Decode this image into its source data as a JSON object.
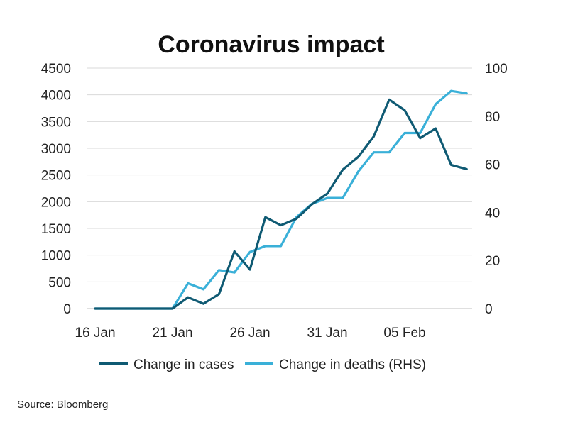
{
  "chart_data": {
    "type": "line",
    "title": "Coronavirus impact",
    "x_tick_labels": [
      "16 Jan",
      "21 Jan",
      "26 Jan",
      "31 Jan",
      "05 Feb"
    ],
    "x_tick_index": [
      0,
      5,
      10,
      15,
      20
    ],
    "y_left": {
      "min": 0,
      "max": 4500,
      "ticks": [
        0,
        500,
        1000,
        1500,
        2000,
        2500,
        3000,
        3500,
        4000,
        4500
      ]
    },
    "y_right": {
      "min": 0,
      "max": 100,
      "ticks": [
        0,
        20,
        40,
        60,
        80,
        100
      ]
    },
    "grid": true,
    "legend_position": "bottom",
    "series": [
      {
        "name": "Change in cases",
        "axis": "left",
        "color": "#0f5a73",
        "values": [
          0,
          0,
          0,
          0,
          0,
          0,
          210,
          90,
          270,
          1070,
          730,
          1710,
          1560,
          1680,
          1950,
          2150,
          2600,
          2840,
          3220,
          3910,
          3710,
          3190,
          3370,
          2690,
          2610
        ]
      },
      {
        "name": "Change in deaths (RHS)",
        "axis": "right",
        "color": "#3ab0d8",
        "values": [
          0,
          0,
          0,
          0,
          0,
          0,
          10.5,
          8,
          16,
          15,
          23.5,
          26,
          26,
          38,
          43.5,
          46,
          46,
          57,
          65,
          65,
          73,
          73,
          85,
          90.5,
          89.5
        ]
      }
    ]
  },
  "source": "Source: Bloomberg"
}
